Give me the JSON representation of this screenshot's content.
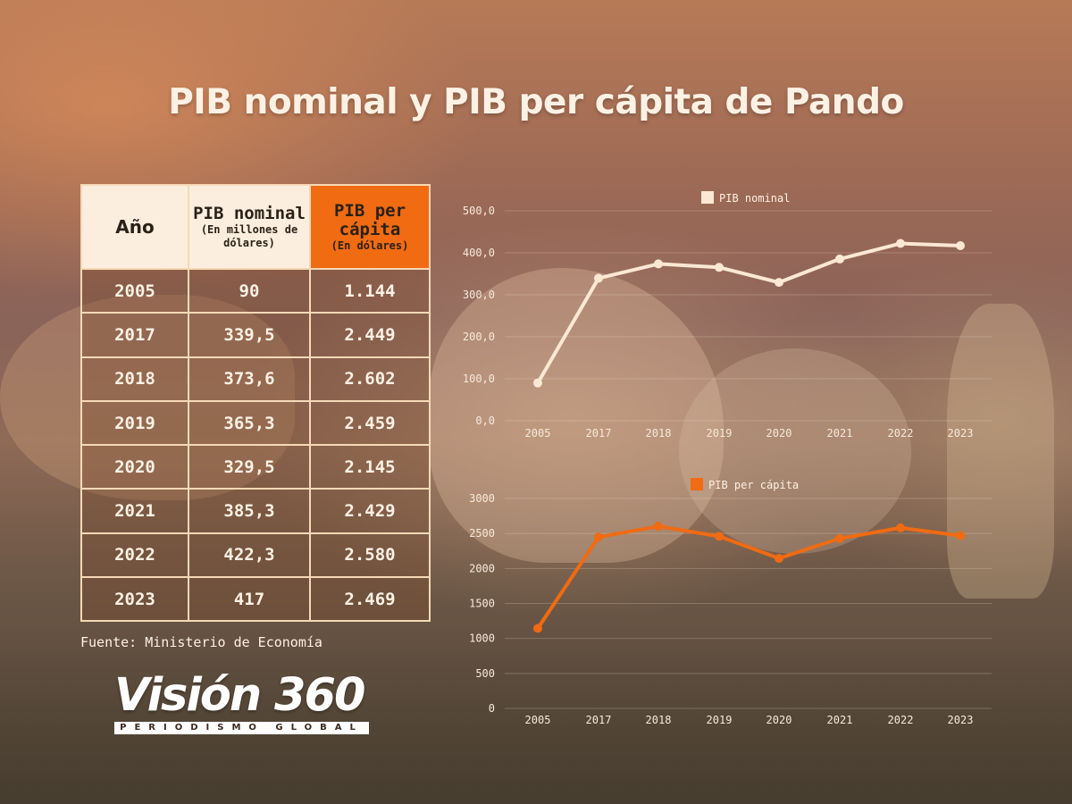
{
  "title": "PIB nominal y PIB per cápita de Pando",
  "table": {
    "headers": {
      "year": "Año",
      "nominal": "PIB nominal",
      "nominal_sub": "(En millones de dólares)",
      "per_capita": "PIB per cápita",
      "per_capita_sub": "(En dólares)"
    },
    "rows": [
      {
        "year": "2005",
        "nominal": "90",
        "per_capita": "1.144"
      },
      {
        "year": "2017",
        "nominal": "339,5",
        "per_capita": "2.449"
      },
      {
        "year": "2018",
        "nominal": "373,6",
        "per_capita": "2.602"
      },
      {
        "year": "2019",
        "nominal": "365,3",
        "per_capita": "2.459"
      },
      {
        "year": "2020",
        "nominal": "329,5",
        "per_capita": "2.145"
      },
      {
        "year": "2021",
        "nominal": "385,3",
        "per_capita": "2.429"
      },
      {
        "year": "2022",
        "nominal": "422,3",
        "per_capita": "2.580"
      },
      {
        "year": "2023",
        "nominal": "417",
        "per_capita": "2.469"
      }
    ]
  },
  "source": "Fuente: Ministerio de Economía",
  "logo": {
    "main": "Visión 360",
    "sub": "PERIODISMO GLOBAL"
  },
  "colors": {
    "nominal": "#fbe8d4",
    "per_capita": "#f06b12",
    "header_bg": "#fbeede",
    "border": "#f6d9b7"
  },
  "chart_data": [
    {
      "type": "line",
      "categories": [
        "2005",
        "2017",
        "2018",
        "2019",
        "2020",
        "2021",
        "2022",
        "2023"
      ],
      "series": [
        {
          "name": "PIB nominal",
          "values": [
            90,
            339.5,
            373.6,
            365.3,
            329.5,
            385.3,
            422.3,
            417
          ]
        }
      ],
      "ylim": [
        0,
        500
      ],
      "yticks": [
        "0,0",
        "100,0",
        "200,0",
        "300,0",
        "400,0",
        "500,0"
      ],
      "grid": true,
      "legend": "top-center"
    },
    {
      "type": "line",
      "categories": [
        "2005",
        "2017",
        "2018",
        "2019",
        "2020",
        "2021",
        "2022",
        "2023"
      ],
      "series": [
        {
          "name": "PIB per cápita",
          "values": [
            1144,
            2449,
            2602,
            2459,
            2145,
            2429,
            2580,
            2469
          ]
        }
      ],
      "ylim": [
        0,
        3000
      ],
      "yticks": [
        "0",
        "500",
        "1000",
        "1500",
        "2000",
        "2500",
        "3000"
      ],
      "grid": true,
      "legend": "top-center"
    }
  ]
}
